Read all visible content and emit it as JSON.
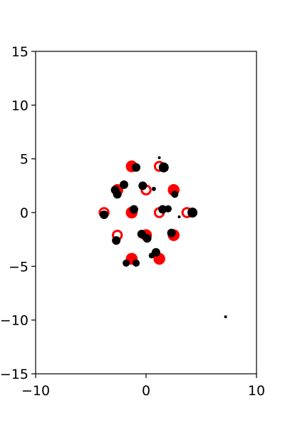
{
  "chart_data": {
    "type": "scatter",
    "title": "",
    "xlabel": "",
    "ylabel": "",
    "xlim": [
      -10,
      10
    ],
    "ylim": [
      -15,
      15
    ],
    "grid": false,
    "legend": "none",
    "x_ticks": [
      -10,
      0,
      10
    ],
    "x_tick_labels": [
      "−10",
      "0",
      "10"
    ],
    "y_ticks": [
      -15,
      -10,
      -5,
      0,
      5,
      10,
      15
    ],
    "y_tick_labels": [
      "−15",
      "−10",
      "−5",
      "0",
      "5",
      "10",
      "15"
    ],
    "series": [
      {
        "color": "#ff0000",
        "marker": "filled-circle",
        "points": [
          {
            "x": -1.3,
            "y": 4.3
          },
          {
            "x": -2.6,
            "y": 2.1
          },
          {
            "x": 2.5,
            "y": 2.1
          },
          {
            "x": -1.3,
            "y": 0.0
          },
          {
            "x": 0.0,
            "y": -2.1
          },
          {
            "x": 2.5,
            "y": -2.1
          },
          {
            "x": -1.3,
            "y": -4.3
          },
          {
            "x": 1.2,
            "y": -4.3
          }
        ]
      },
      {
        "color": "#ff0000",
        "marker": "open-circle",
        "points": [
          {
            "x": 1.2,
            "y": 4.3
          },
          {
            "x": 0.0,
            "y": 2.1
          },
          {
            "x": -3.8,
            "y": 0.0
          },
          {
            "x": 1.2,
            "y": 0.0
          },
          {
            "x": 3.7,
            "y": 0.0
          },
          {
            "x": -2.6,
            "y": -2.1
          }
        ]
      },
      {
        "color": "#000000",
        "marker": "filled-circle",
        "points": [
          {
            "x": 1.2,
            "y": 5.1,
            "size": 2
          },
          {
            "x": 1.6,
            "y": 4.2,
            "size": 7
          },
          {
            "x": -0.9,
            "y": 4.2,
            "size": 6
          },
          {
            "x": -2.0,
            "y": 2.6,
            "size": 6
          },
          {
            "x": -0.3,
            "y": 2.5,
            "size": 6
          },
          {
            "x": -2.8,
            "y": 2.1,
            "size": 6
          },
          {
            "x": -2.6,
            "y": 1.7,
            "size": 6
          },
          {
            "x": 0.7,
            "y": 2.2,
            "size": 3
          },
          {
            "x": 2.6,
            "y": 1.7,
            "size": 5
          },
          {
            "x": -1.1,
            "y": 0.3,
            "size": 6
          },
          {
            "x": 1.5,
            "y": 0.3,
            "size": 6
          },
          {
            "x": 2.0,
            "y": 0.35,
            "size": 5
          },
          {
            "x": -3.8,
            "y": -0.2,
            "size": 6
          },
          {
            "x": 4.2,
            "y": 0.0,
            "size": 7
          },
          {
            "x": 3.0,
            "y": -0.4,
            "size": 2
          },
          {
            "x": -0.4,
            "y": -2.0,
            "size": 6
          },
          {
            "x": 2.3,
            "y": -1.9,
            "size": 6
          },
          {
            "x": 0.1,
            "y": -2.4,
            "size": 6
          },
          {
            "x": -2.7,
            "y": -2.6,
            "size": 6
          },
          {
            "x": 0.9,
            "y": -3.7,
            "size": 6
          },
          {
            "x": 0.5,
            "y": -4.0,
            "size": 4
          },
          {
            "x": -1.8,
            "y": -4.7,
            "size": 5
          },
          {
            "x": -0.9,
            "y": -4.7,
            "size": 5
          },
          {
            "x": 7.2,
            "y": -9.7,
            "size": 2
          }
        ]
      }
    ]
  }
}
